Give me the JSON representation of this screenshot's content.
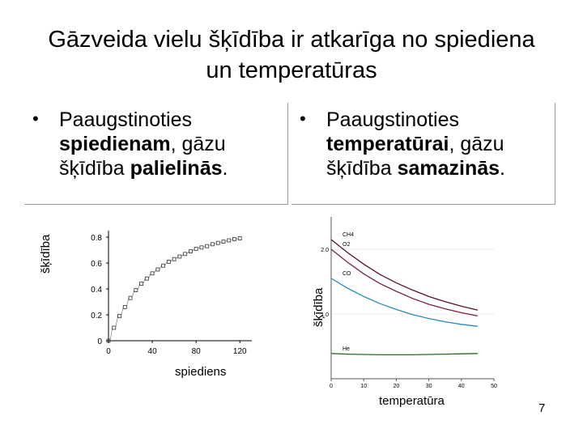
{
  "title": "Gāzveida vielu šķīdība ir atkarīga no spiediena un temperatūras",
  "left_box": {
    "bullet": "•",
    "text_before": "Paaugstinoties ",
    "text_bold": "spiedienam",
    "text_middle": ", gāzu šķīdība ",
    "text_bold2": "palielinās",
    "text_end": "."
  },
  "right_box": {
    "bullet": "•",
    "text_before": "Paaugstinoties ",
    "text_bold": "temperatūrai",
    "text_middle": ", gāzu šķīdība ",
    "text_bold2": "samazinās",
    "text_end": "."
  },
  "page_number": "7",
  "chart_data": [
    {
      "type": "scatter",
      "title": "",
      "xlabel": "spiediens",
      "ylabel": "šķīdība",
      "x_ticks": [
        "0",
        "40",
        "80",
        "120"
      ],
      "y_ticks": [
        "0",
        "0.2",
        "0.4",
        "0.6",
        "0.8"
      ],
      "xlim": [
        0,
        125
      ],
      "ylim": [
        0,
        0.85
      ],
      "series": [
        {
          "x": [
            0,
            5,
            10,
            15,
            20,
            25,
            30,
            35,
            40,
            45,
            50,
            55,
            60,
            65,
            70,
            75,
            80,
            85,
            90,
            95,
            100,
            105,
            110,
            115,
            120
          ],
          "y": [
            0.0,
            0.1,
            0.19,
            0.26,
            0.33,
            0.39,
            0.44,
            0.48,
            0.52,
            0.55,
            0.58,
            0.61,
            0.63,
            0.65,
            0.67,
            0.69,
            0.71,
            0.72,
            0.73,
            0.745,
            0.755,
            0.765,
            0.775,
            0.785,
            0.79
          ]
        }
      ]
    },
    {
      "type": "line",
      "title": "",
      "xlabel": "temperatūra",
      "ylabel": "šķīdība",
      "x_ticks": [
        "0",
        "10",
        "20",
        "30",
        "40",
        "50"
      ],
      "y_ticks": [
        "1.0",
        "2.0"
      ],
      "xlim": [
        0,
        50
      ],
      "ylim": [
        0,
        2.5
      ],
      "series": [
        {
          "name": "CH4",
          "color": "#5a1030",
          "x": [
            0,
            5,
            10,
            15,
            20,
            25,
            30,
            35,
            40,
            45
          ],
          "y": [
            2.15,
            1.95,
            1.77,
            1.61,
            1.48,
            1.37,
            1.27,
            1.19,
            1.12,
            1.06
          ]
        },
        {
          "name": "O2",
          "color": "#7a2040",
          "x": [
            0,
            5,
            10,
            15,
            20,
            25,
            30,
            35,
            40,
            45
          ],
          "y": [
            2.0,
            1.8,
            1.62,
            1.47,
            1.35,
            1.24,
            1.15,
            1.08,
            1.02,
            0.97
          ]
        },
        {
          "name": "CO",
          "color": "#2a8ac0",
          "x": [
            0,
            5,
            10,
            15,
            20,
            25,
            30,
            35,
            40,
            45
          ],
          "y": [
            1.55,
            1.4,
            1.27,
            1.16,
            1.07,
            0.99,
            0.93,
            0.88,
            0.84,
            0.81
          ]
        },
        {
          "name": "He",
          "color": "#2a6a2a",
          "x": [
            0,
            5,
            10,
            15,
            20,
            25,
            30,
            35,
            40,
            45
          ],
          "y": [
            0.39,
            0.38,
            0.375,
            0.37,
            0.37,
            0.37,
            0.375,
            0.38,
            0.385,
            0.39
          ]
        }
      ]
    }
  ]
}
